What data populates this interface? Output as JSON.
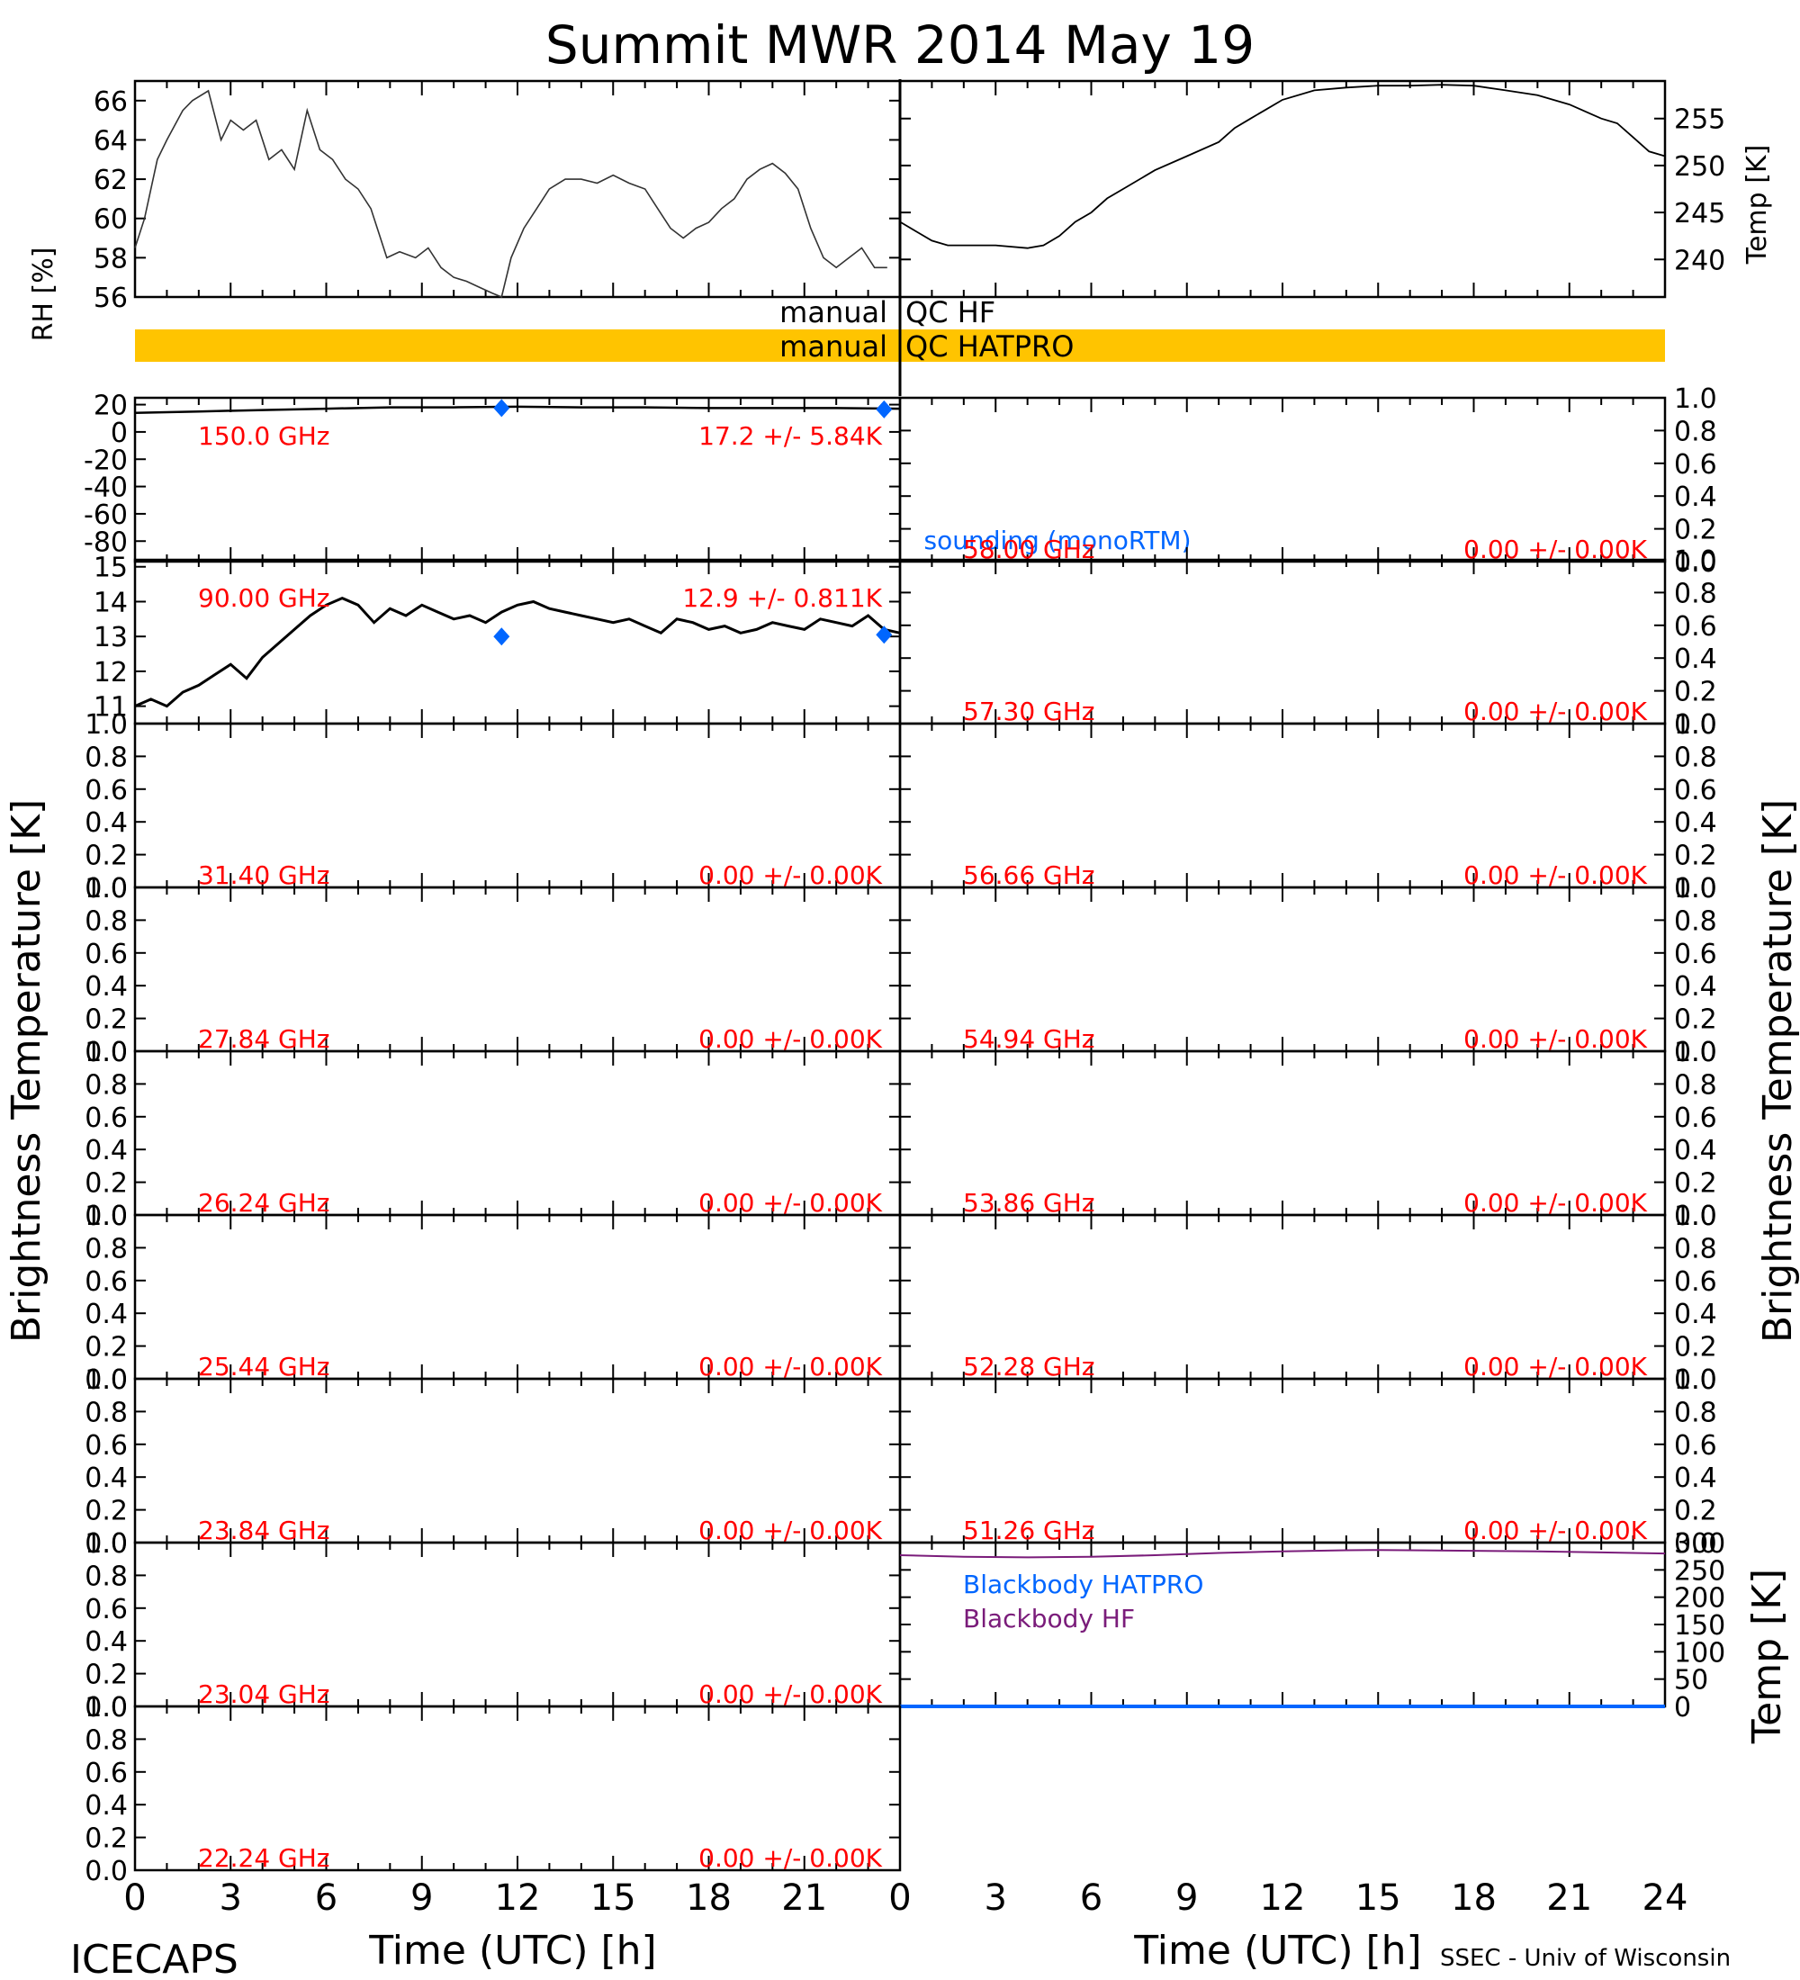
{
  "title": "Summit MWR 2014 May 19",
  "footer": {
    "left": "ICECAPS",
    "right": "SSEC - Univ of Wisconsin",
    "xlabel": "Time (UTC) [h]"
  },
  "colors": {
    "trace": "#000000",
    "label": "#ff0000",
    "sounding": "#0066ff",
    "qc_bar": "#ffc400",
    "bb_hatpro": "#0066ff",
    "bb_hf": "#7a1c7a"
  },
  "axes_labels": {
    "brightness_left": "Brightness Temperature [K]",
    "brightness_right": "Brightness Temperature [K]",
    "rh": "RH [%]",
    "temp_top": "Temp [K]",
    "temp_bottom": "Temp [K]"
  },
  "qc": {
    "row1_left": "manual",
    "row1_right": "QC HF",
    "row2_left": "manual",
    "row2_right": "QC HATPRO"
  },
  "sounding_label": "sounding (monoRTM)",
  "x_ticks": [
    "0",
    "3",
    "6",
    "9",
    "12",
    "15",
    "18",
    "21",
    "24"
  ],
  "chart_data": [
    {
      "type": "line",
      "panel": "rh",
      "ylabel": "RH [%]",
      "xlim": [
        0,
        24
      ],
      "ylim": [
        56,
        67
      ],
      "y_ticks": [
        "56",
        "58",
        "60",
        "62",
        "64",
        "66"
      ],
      "x": [
        0,
        0.3,
        0.7,
        1.0,
        1.5,
        1.8,
        2.3,
        2.7,
        3.0,
        3.4,
        3.8,
        4.2,
        4.6,
        5.0,
        5.4,
        5.8,
        6.2,
        6.6,
        7.0,
        7.4,
        7.6,
        7.9,
        8.3,
        8.8,
        9.2,
        9.6,
        10.0,
        10.4,
        10.8,
        11.2,
        11.5,
        11.8,
        12.2,
        12.6,
        13.0,
        13.5,
        14.0,
        14.5,
        15.0,
        15.5,
        16.0,
        16.4,
        16.8,
        17.2,
        17.6,
        18.0,
        18.4,
        18.8,
        19.2,
        19.6,
        20.0,
        20.4,
        20.8,
        21.2,
        21.6,
        22.0,
        22.4,
        22.8,
        23.2,
        23.6
      ],
      "y": [
        58.5,
        60.0,
        63.0,
        64.0,
        65.5,
        66.0,
        66.5,
        64.0,
        65.0,
        64.5,
        65.0,
        63.0,
        63.5,
        62.5,
        65.5,
        63.5,
        63.0,
        62.0,
        61.5,
        60.5,
        59.5,
        58.0,
        58.3,
        58.0,
        58.5,
        57.5,
        57.0,
        56.8,
        56.5,
        56.2,
        56.0,
        58.0,
        59.5,
        60.5,
        61.5,
        62.0,
        62.0,
        61.8,
        62.2,
        61.8,
        61.5,
        60.5,
        59.5,
        59.0,
        59.5,
        59.8,
        60.5,
        61.0,
        62.0,
        62.5,
        62.8,
        62.3,
        61.5,
        59.5,
        58.0,
        57.5,
        58.0,
        58.5,
        57.5,
        57.5
      ]
    },
    {
      "type": "line",
      "panel": "temp",
      "ylabel": "Temp [K]",
      "xlim": [
        0,
        24
      ],
      "ylim": [
        236,
        259
      ],
      "y_ticks": [
        "240",
        "245",
        "250",
        "255"
      ],
      "x": [
        0,
        0.5,
        1.0,
        1.5,
        2.0,
        3.0,
        4.0,
        4.5,
        5.0,
        5.5,
        6.0,
        6.5,
        7.0,
        8.0,
        9.0,
        10.0,
        10.5,
        11.0,
        11.5,
        12.0,
        13.0,
        14.0,
        15.0,
        16.0,
        17.0,
        18.0,
        19.0,
        20.0,
        21.0,
        22.0,
        22.5,
        23.0,
        23.5,
        24.0
      ],
      "y": [
        244.0,
        243.0,
        242.0,
        241.5,
        241.5,
        241.5,
        241.2,
        241.5,
        242.5,
        244.0,
        245.0,
        246.5,
        247.5,
        249.5,
        251.0,
        252.5,
        254.0,
        255.0,
        256.0,
        257.0,
        258.0,
        258.3,
        258.5,
        258.5,
        258.6,
        258.5,
        258.0,
        257.5,
        256.5,
        255.0,
        254.5,
        253.0,
        251.5,
        251.0
      ]
    },
    {
      "type": "line",
      "panel": "tb",
      "label": "150.0 GHz",
      "stat": "17.2 +/- 5.84K",
      "xlim": [
        0,
        24
      ],
      "ylim": [
        -95,
        25
      ],
      "y_ticks": [
        "-80",
        "-60",
        "-40",
        "-20",
        "0",
        "20"
      ],
      "x": [
        0,
        2,
        4,
        6,
        8,
        10,
        12,
        14,
        16,
        18,
        20,
        22,
        24
      ],
      "y": [
        14,
        15,
        16,
        17,
        18,
        18,
        18.5,
        18,
        18,
        17.5,
        17.5,
        17.5,
        17
      ],
      "sounding_x": [
        11.5,
        23.5
      ],
      "sounding_y": [
        17.5,
        16.5
      ]
    },
    {
      "type": "line",
      "panel": "tb",
      "label": "58.00 GHz",
      "stat": "0.00 +/- 0.00K",
      "ylim": [
        0,
        1
      ],
      "y_ticks": [
        "0.0",
        "0.2",
        "0.4",
        "0.6",
        "0.8",
        "1.0"
      ]
    },
    {
      "type": "line",
      "panel": "tb",
      "label": "90.00 GHz",
      "stat": "12.9 +/- 0.811K",
      "xlim": [
        0,
        24
      ],
      "ylim": [
        10.5,
        15.2
      ],
      "y_ticks": [
        "11",
        "12",
        "13",
        "14",
        "15"
      ],
      "x": [
        0,
        0.5,
        1.0,
        1.5,
        2.0,
        2.5,
        3.0,
        3.5,
        4.0,
        4.5,
        5.0,
        5.5,
        6.0,
        6.5,
        7.0,
        7.5,
        8.0,
        8.5,
        9.0,
        9.5,
        10.0,
        10.5,
        11.0,
        11.5,
        12.0,
        12.5,
        13.0,
        13.5,
        14.0,
        14.5,
        15.0,
        15.5,
        16.0,
        16.5,
        17.0,
        17.5,
        18.0,
        18.5,
        19.0,
        19.5,
        20.0,
        20.5,
        21.0,
        21.5,
        22.0,
        22.5,
        23.0,
        23.5,
        24.0
      ],
      "y": [
        11.0,
        11.2,
        11.0,
        11.4,
        11.6,
        11.9,
        12.2,
        11.8,
        12.4,
        12.8,
        13.2,
        13.6,
        13.9,
        14.1,
        13.9,
        13.4,
        13.8,
        13.6,
        13.9,
        13.7,
        13.5,
        13.6,
        13.4,
        13.7,
        13.9,
        14.0,
        13.8,
        13.7,
        13.6,
        13.5,
        13.4,
        13.5,
        13.3,
        13.1,
        13.5,
        13.4,
        13.2,
        13.3,
        13.1,
        13.2,
        13.4,
        13.3,
        13.2,
        13.5,
        13.4,
        13.3,
        13.6,
        13.2,
        13.1
      ],
      "sounding_x": [
        11.5,
        23.5
      ],
      "sounding_y": [
        13.0,
        13.05
      ]
    },
    {
      "type": "line",
      "panel": "tb",
      "label": "57.30 GHz",
      "stat": "0.00 +/- 0.00K",
      "ylim": [
        0,
        1
      ],
      "y_ticks": [
        "0.0",
        "0.2",
        "0.4",
        "0.6",
        "0.8",
        "1.0"
      ]
    },
    {
      "type": "line",
      "panel": "tb",
      "label": "31.40 GHz",
      "stat": "0.00 +/- 0.00K",
      "ylim": [
        0,
        1
      ],
      "y_ticks": [
        "0.0",
        "0.2",
        "0.4",
        "0.6",
        "0.8",
        "1.0"
      ]
    },
    {
      "type": "line",
      "panel": "tb",
      "label": "56.66 GHz",
      "stat": "0.00 +/- 0.00K",
      "ylim": [
        0,
        1
      ],
      "y_ticks": [
        "0.0",
        "0.2",
        "0.4",
        "0.6",
        "0.8",
        "1.0"
      ]
    },
    {
      "type": "line",
      "panel": "tb",
      "label": "27.84 GHz",
      "stat": "0.00 +/- 0.00K",
      "ylim": [
        0,
        1
      ],
      "y_ticks": [
        "0.0",
        "0.2",
        "0.4",
        "0.6",
        "0.8",
        "1.0"
      ]
    },
    {
      "type": "line",
      "panel": "tb",
      "label": "54.94 GHz",
      "stat": "0.00 +/- 0.00K",
      "ylim": [
        0,
        1
      ],
      "y_ticks": [
        "0.0",
        "0.2",
        "0.4",
        "0.6",
        "0.8",
        "1.0"
      ]
    },
    {
      "type": "line",
      "panel": "tb",
      "label": "26.24 GHz",
      "stat": "0.00 +/- 0.00K",
      "ylim": [
        0,
        1
      ],
      "y_ticks": [
        "0.0",
        "0.2",
        "0.4",
        "0.6",
        "0.8",
        "1.0"
      ]
    },
    {
      "type": "line",
      "panel": "tb",
      "label": "53.86 GHz",
      "stat": "0.00 +/- 0.00K",
      "ylim": [
        0,
        1
      ],
      "y_ticks": [
        "0.0",
        "0.2",
        "0.4",
        "0.6",
        "0.8",
        "1.0"
      ]
    },
    {
      "type": "line",
      "panel": "tb",
      "label": "25.44 GHz",
      "stat": "0.00 +/- 0.00K",
      "ylim": [
        0,
        1
      ],
      "y_ticks": [
        "0.0",
        "0.2",
        "0.4",
        "0.6",
        "0.8",
        "1.0"
      ]
    },
    {
      "type": "line",
      "panel": "tb",
      "label": "52.28 GHz",
      "stat": "0.00 +/- 0.00K",
      "ylim": [
        0,
        1
      ],
      "y_ticks": [
        "0.0",
        "0.2",
        "0.4",
        "0.6",
        "0.8",
        "1.0"
      ]
    },
    {
      "type": "line",
      "panel": "tb",
      "label": "23.84 GHz",
      "stat": "0.00 +/- 0.00K",
      "ylim": [
        0,
        1
      ],
      "y_ticks": [
        "0.0",
        "0.2",
        "0.4",
        "0.6",
        "0.8",
        "1.0"
      ]
    },
    {
      "type": "line",
      "panel": "tb",
      "label": "51.26 GHz",
      "stat": "0.00 +/- 0.00K",
      "ylim": [
        0,
        1
      ],
      "y_ticks": [
        "0.0",
        "0.2",
        "0.4",
        "0.6",
        "0.8",
        "1.0"
      ]
    },
    {
      "type": "line",
      "panel": "tb",
      "label": "23.04 GHz",
      "stat": "0.00 +/- 0.00K",
      "ylim": [
        0,
        1
      ],
      "y_ticks": [
        "0.0",
        "0.2",
        "0.4",
        "0.6",
        "0.8",
        "1.0"
      ]
    },
    {
      "type": "line",
      "panel": "blackbody",
      "ylabel": "Temp [K]",
      "xlim": [
        0,
        24
      ],
      "ylim": [
        0,
        300
      ],
      "y_ticks": [
        "0",
        "50",
        "100",
        "150",
        "200",
        "250",
        "300"
      ],
      "series": [
        {
          "name": "Blackbody HATPRO",
          "x": [
            0,
            24
          ],
          "y": [
            0,
            0
          ]
        },
        {
          "name": "Blackbody HF",
          "x": [
            0,
            2,
            4,
            6,
            8,
            10,
            12,
            14,
            15,
            16,
            18,
            20,
            22,
            24
          ],
          "y": [
            277,
            274,
            273,
            274,
            277,
            281,
            284,
            286,
            286.5,
            286,
            285,
            284,
            282,
            280
          ]
        }
      ]
    },
    {
      "type": "line",
      "panel": "tb",
      "label": "22.24 GHz",
      "stat": "0.00 +/- 0.00K",
      "ylim": [
        0,
        1
      ],
      "y_ticks": [
        "0.0",
        "0.2",
        "0.4",
        "0.6",
        "0.8",
        "1.0"
      ]
    }
  ]
}
